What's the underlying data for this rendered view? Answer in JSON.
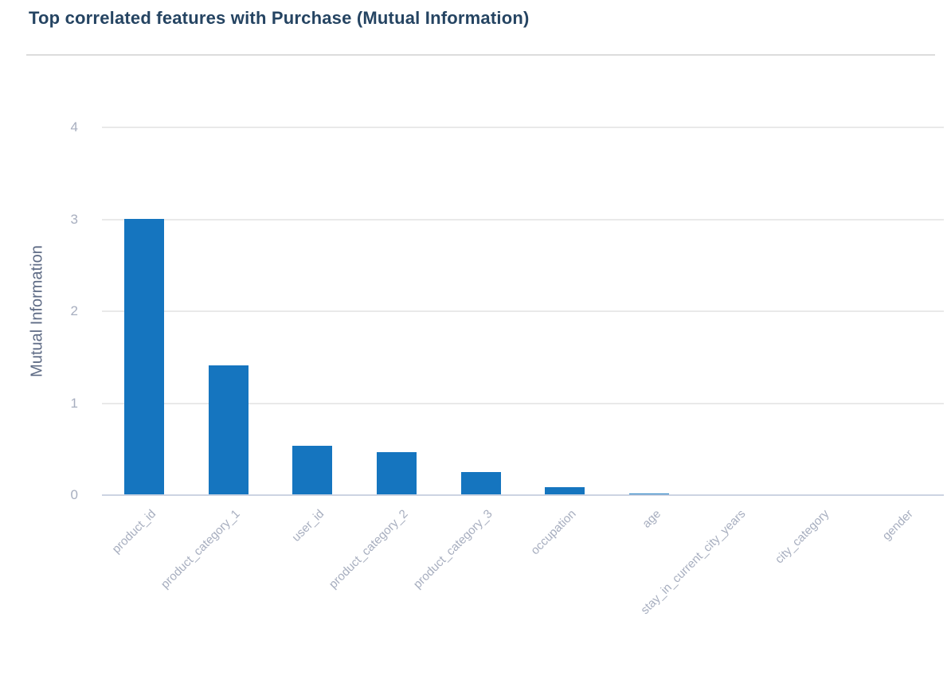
{
  "chart_data": {
    "type": "bar",
    "title": "Top correlated features with Purchase (Mutual Information)",
    "xlabel": "",
    "ylabel": "Mutual Information",
    "categories": [
      "product_id",
      "product_category_1",
      "user_id",
      "product_category_2",
      "product_category_3",
      "occupation",
      "age",
      "stay_in_current_city_years",
      "city_category",
      "gender"
    ],
    "values": [
      3.0,
      1.41,
      0.54,
      0.47,
      0.25,
      0.09,
      0.02,
      0.0,
      0.0,
      0.0
    ],
    "yticks": [
      0,
      1,
      2,
      3,
      4
    ],
    "ylim": [
      0,
      4.6
    ],
    "grid": true,
    "legend": "none",
    "colors": {
      "bar": "#1575bf",
      "gridline": "#e9e9e9",
      "axis_line": "#ccd4e2",
      "tick_label": "#a7aebf",
      "axis_title": "#5e6b85",
      "title": "#254462",
      "divider": "#dcdcdc",
      "background": "#ffffff"
    }
  }
}
